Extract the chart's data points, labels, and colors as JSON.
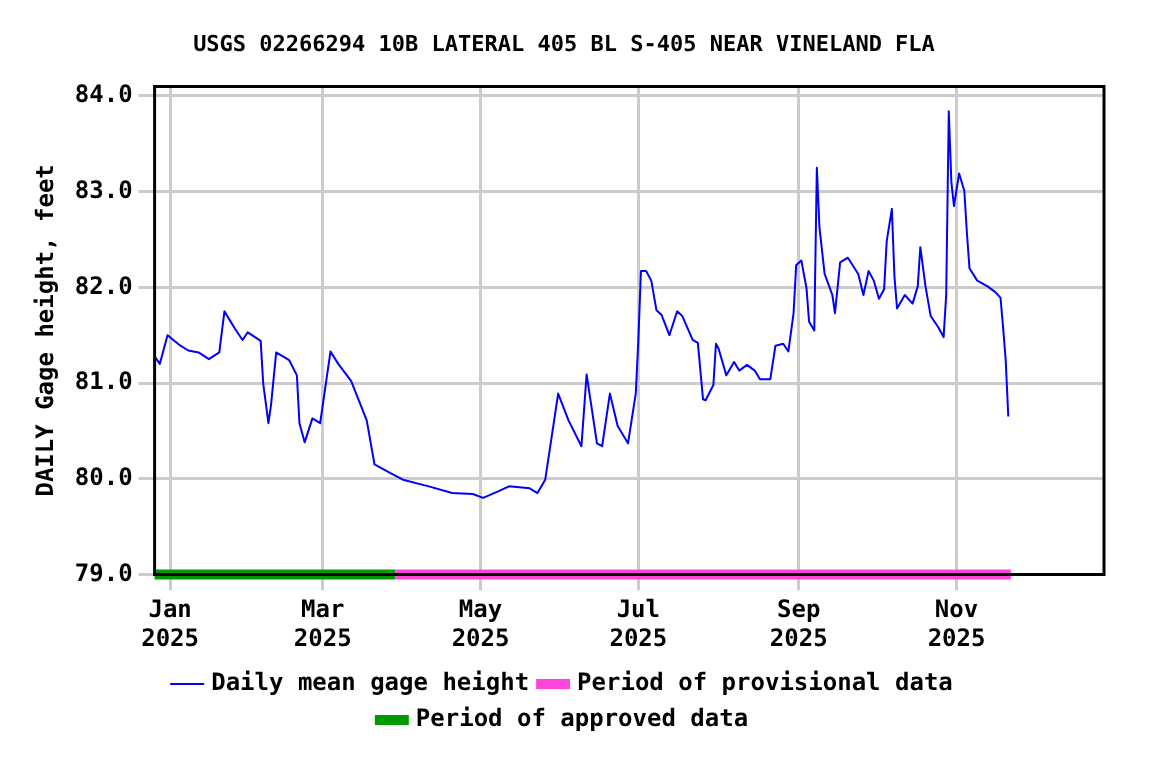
{
  "chart_data": {
    "type": "line",
    "title": "USGS 02266294 10B LATERAL 405 BL S-405 NEAR VINELAND FLA",
    "ylabel": "DAILY Gage height, feet",
    "x": [
      "2024-12-26",
      "2024-12-28",
      "2024-12-31",
      "2025-01-05",
      "2025-01-08",
      "2025-01-12",
      "2025-01-16",
      "2025-01-20",
      "2025-01-22",
      "2025-01-24",
      "2025-01-26",
      "2025-01-29",
      "2025-01-31",
      "2025-02-05",
      "2025-02-06",
      "2025-02-08",
      "2025-02-09",
      "2025-02-11",
      "2025-02-16",
      "2025-02-19",
      "2025-02-20",
      "2025-02-22",
      "2025-02-25",
      "2025-02-28",
      "2025-03-04",
      "2025-03-07",
      "2025-03-12",
      "2025-03-18",
      "2025-03-21",
      "2025-03-27",
      "2025-04-01",
      "2025-04-11",
      "2025-04-20",
      "2025-04-28",
      "2025-05-02",
      "2025-05-08",
      "2025-05-12",
      "2025-05-20",
      "2025-05-23",
      "2025-05-26",
      "2025-05-31",
      "2025-06-04",
      "2025-06-09",
      "2025-06-11",
      "2025-06-15",
      "2025-06-17",
      "2025-06-20",
      "2025-06-23",
      "2025-06-27",
      "2025-06-30",
      "2025-07-01",
      "2025-07-02",
      "2025-07-04",
      "2025-07-06",
      "2025-07-08",
      "2025-07-10",
      "2025-07-13",
      "2025-07-16",
      "2025-07-18",
      "2025-07-22",
      "2025-07-24",
      "2025-07-26",
      "2025-07-27",
      "2025-07-30",
      "2025-07-31",
      "2025-08-01",
      "2025-08-04",
      "2025-08-07",
      "2025-08-09",
      "2025-08-12",
      "2025-08-15",
      "2025-08-17",
      "2025-08-21",
      "2025-08-23",
      "2025-08-26",
      "2025-08-28",
      "2025-08-30",
      "2025-08-31",
      "2025-09-02",
      "2025-09-04",
      "2025-09-05",
      "2025-09-07",
      "2025-09-08",
      "2025-09-09",
      "2025-09-11",
      "2025-09-14",
      "2025-09-15",
      "2025-09-17",
      "2025-09-20",
      "2025-09-24",
      "2025-09-26",
      "2025-09-28",
      "2025-09-30",
      "2025-10-02",
      "2025-10-04",
      "2025-10-05",
      "2025-10-07",
      "2025-10-08",
      "2025-10-09",
      "2025-10-12",
      "2025-10-15",
      "2025-10-17",
      "2025-10-18",
      "2025-10-20",
      "2025-10-22",
      "2025-10-25",
      "2025-10-27",
      "2025-10-28",
      "2025-10-29",
      "2025-10-30",
      "2025-10-31",
      "2025-11-02",
      "2025-11-04",
      "2025-11-05",
      "2025-11-06",
      "2025-11-09",
      "2025-11-13",
      "2025-11-16",
      "2025-11-18",
      "2025-11-19",
      "2025-11-20",
      "2025-11-21"
    ],
    "series": [
      {
        "name": "Daily mean gage height",
        "color": "#0000ff",
        "values": [
          81.28,
          81.2,
          81.5,
          81.39,
          81.34,
          81.32,
          81.25,
          81.32,
          81.75,
          81.66,
          81.57,
          81.45,
          81.53,
          81.44,
          80.99,
          80.58,
          80.77,
          81.32,
          81.24,
          81.08,
          80.58,
          80.38,
          80.63,
          80.58,
          81.33,
          81.2,
          81.02,
          80.61,
          80.15,
          80.06,
          79.99,
          79.92,
          79.85,
          79.84,
          79.8,
          79.87,
          79.92,
          79.9,
          79.85,
          79.99,
          80.89,
          80.61,
          80.34,
          81.09,
          80.37,
          80.34,
          80.89,
          80.55,
          80.37,
          80.89,
          81.45,
          82.17,
          82.17,
          82.07,
          81.76,
          81.71,
          81.5,
          81.75,
          81.7,
          81.45,
          81.42,
          80.83,
          80.82,
          80.98,
          81.41,
          81.36,
          81.08,
          81.22,
          81.13,
          81.19,
          81.13,
          81.04,
          81.04,
          81.39,
          81.41,
          81.33,
          81.73,
          82.23,
          82.28,
          81.99,
          81.64,
          81.55,
          83.25,
          82.63,
          82.14,
          81.92,
          81.73,
          82.26,
          82.31,
          82.14,
          81.92,
          82.17,
          82.07,
          81.88,
          81.98,
          82.48,
          82.82,
          82.11,
          81.78,
          81.92,
          81.83,
          82.01,
          82.42,
          82.01,
          81.7,
          81.58,
          81.48,
          81.92,
          83.84,
          83.1,
          82.85,
          83.19,
          83.01,
          82.57,
          82.2,
          82.07,
          82.01,
          81.95,
          81.89,
          81.58,
          81.24,
          80.65
        ]
      },
      {
        "name": "Period of provisional data",
        "color": "#ff44dd",
        "x": [
          "2025-03-29",
          "2025-11-22"
        ],
        "values": [
          79.0,
          79.0
        ]
      },
      {
        "name": "Period of approved data",
        "color": "#009900",
        "x": [
          "2024-12-26",
          "2025-03-29"
        ],
        "values": [
          79.0,
          79.0
        ]
      }
    ],
    "xlim": [
      "2024-12-26",
      "2025-12-28"
    ],
    "xticks": [
      {
        "value": "2025-01-01",
        "label": "Jan 2025"
      },
      {
        "value": "2025-03-01",
        "label": "Mar 2025"
      },
      {
        "value": "2025-05-01",
        "label": "May 2025"
      },
      {
        "value": "2025-07-01",
        "label": "Jul 2025"
      },
      {
        "value": "2025-09-01",
        "label": "Sep 2025"
      },
      {
        "value": "2025-11-01",
        "label": "Nov 2025"
      }
    ],
    "ylim": [
      79.0,
      84.1
    ],
    "yticks": [
      {
        "value": 79,
        "label": "79.0"
      },
      {
        "value": 80,
        "label": "80.0"
      },
      {
        "value": 81,
        "label": "81.0"
      },
      {
        "value": 82,
        "label": "82.0"
      },
      {
        "value": 83,
        "label": "83.0"
      },
      {
        "value": 84,
        "label": "84.0"
      }
    ],
    "grid": true,
    "legend": "bottom",
    "marker": "none",
    "line_style": "solid"
  }
}
